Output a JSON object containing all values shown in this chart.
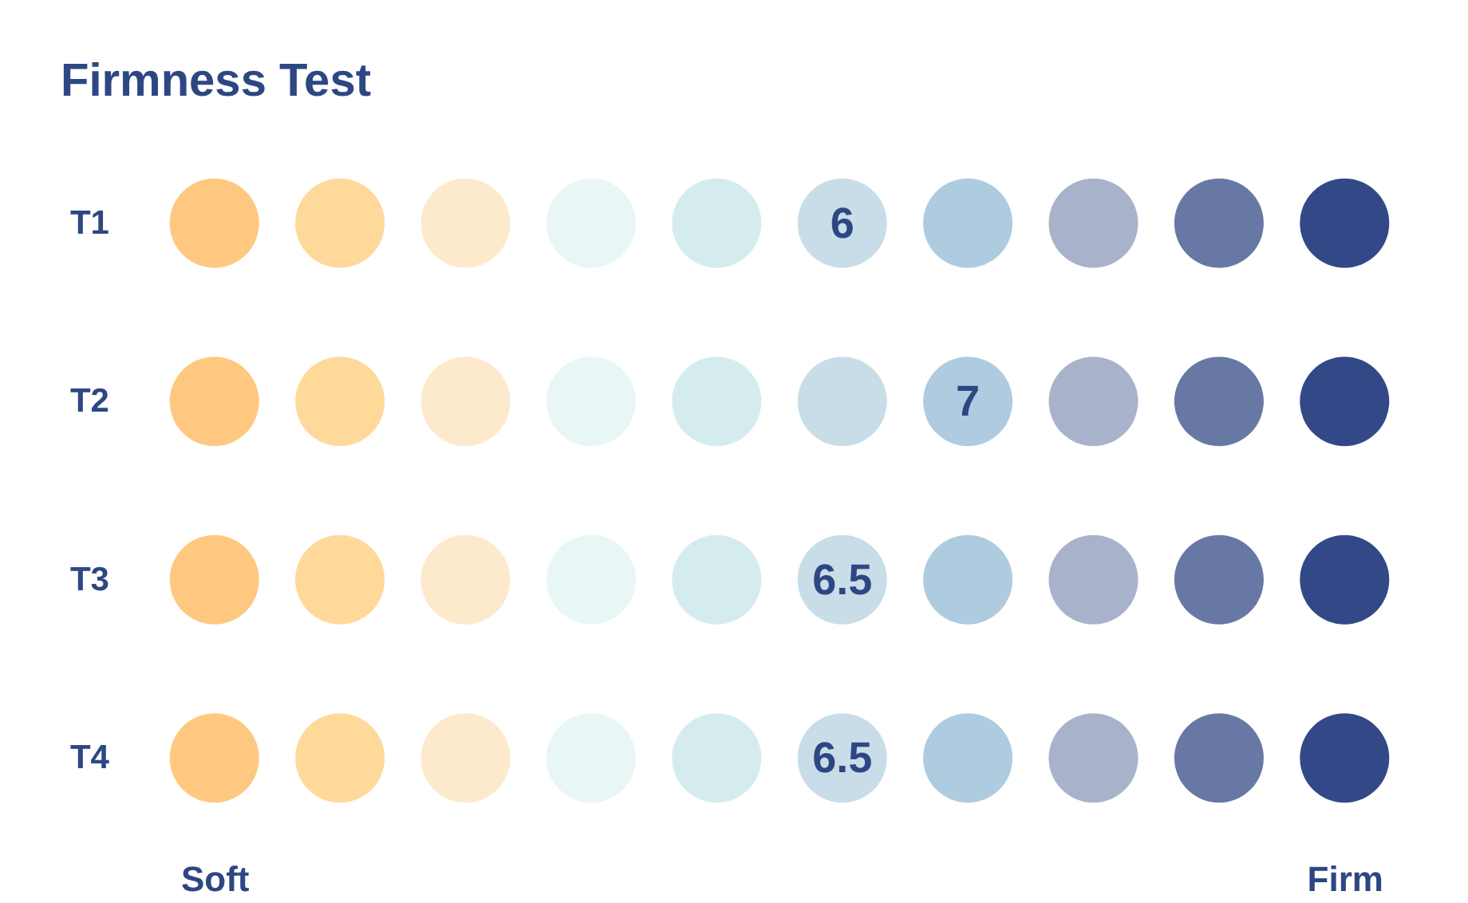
{
  "chart_data": {
    "type": "heatmap",
    "title": "Firmness Test",
    "categories": [
      "Soft",
      null,
      null,
      null,
      null,
      null,
      null,
      null,
      null,
      "Firm"
    ],
    "y_categories": [
      "T1",
      "T2",
      "T3",
      "T4"
    ],
    "colors": [
      "#ffc880",
      "#ffd99a",
      "#fdeacd",
      "#e9f6f6",
      "#d5ecef",
      "#c8dde8",
      "#aecbe0",
      "#a8b3cb",
      "#6878a5",
      "#334886"
    ],
    "cells": [
      [
        null,
        null,
        null,
        null,
        null,
        6,
        null,
        null,
        null,
        null
      ],
      [
        null,
        null,
        null,
        null,
        null,
        null,
        7,
        null,
        null,
        null
      ],
      [
        null,
        null,
        null,
        null,
        null,
        6.5,
        null,
        null,
        null,
        null
      ],
      [
        null,
        null,
        null,
        null,
        null,
        6.5,
        null,
        null,
        null,
        null
      ]
    ],
    "data_labels": true,
    "grid": false
  }
}
